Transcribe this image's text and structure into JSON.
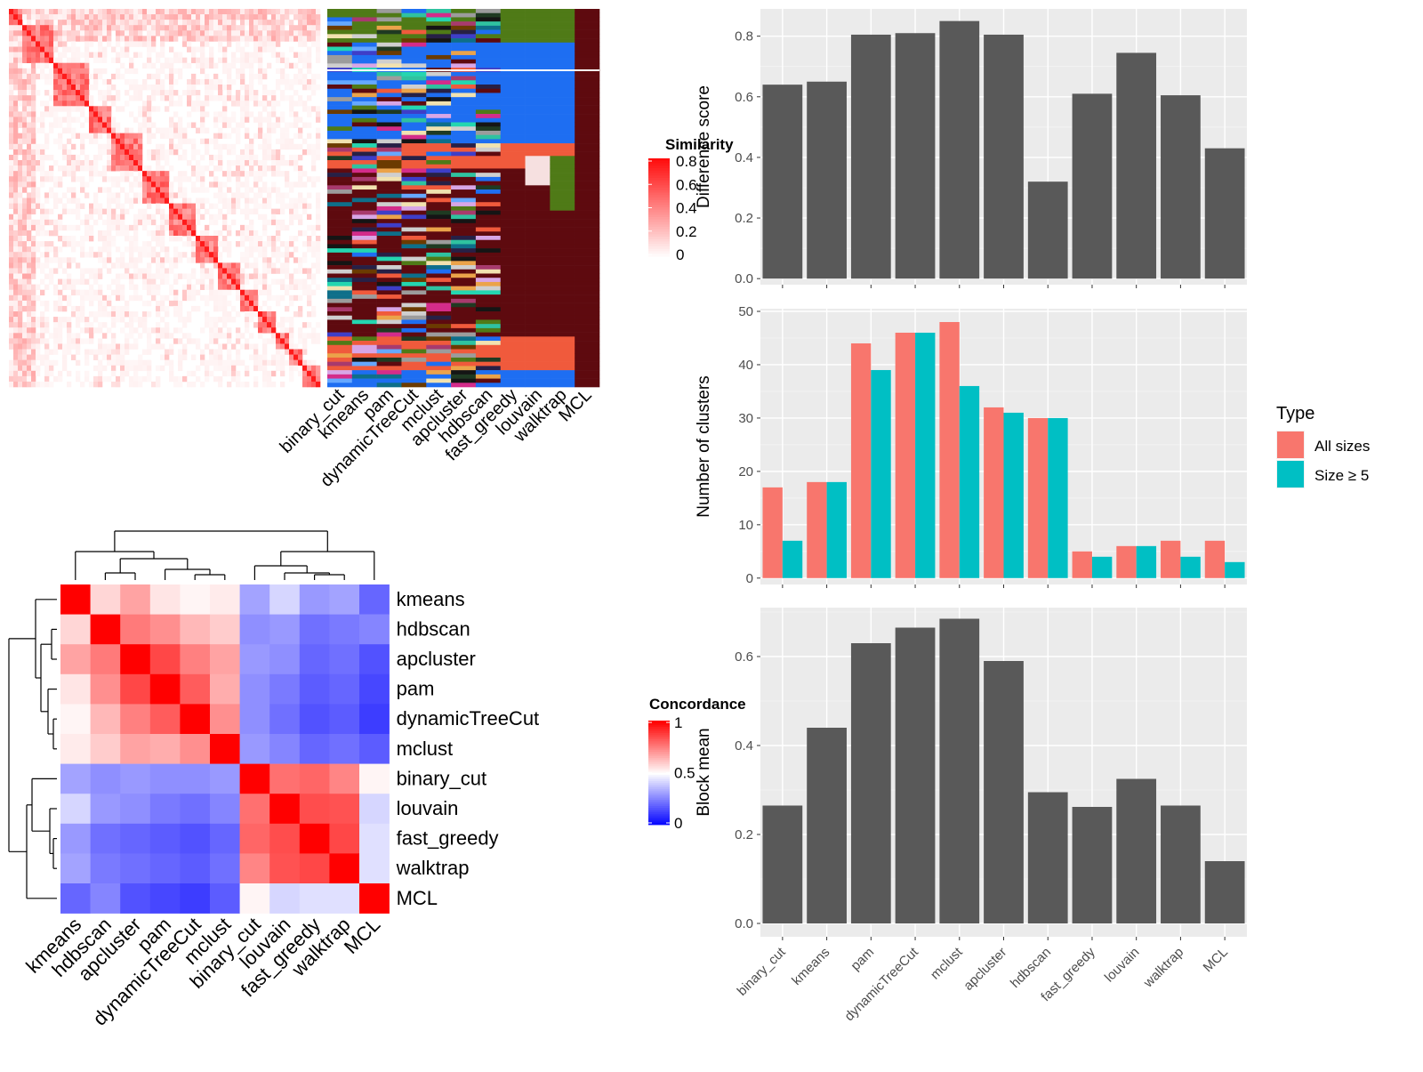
{
  "chart_data": [
    {
      "type": "heatmap",
      "name": "similarity heatmap with cluster assignment annotation",
      "legend": {
        "title": "Similarity",
        "ticks": [
          0,
          0.2,
          0.4,
          0.6,
          0.8
        ],
        "colors": [
          "#ffffff",
          "#ff0000"
        ]
      },
      "annotation_columns": [
        "binary_cut",
        "kmeans",
        "pam",
        "dynamicTreeCut",
        "mclust",
        "apcluster",
        "hdbscan",
        "fast_greedy",
        "louvain",
        "walktrap",
        "MCL"
      ]
    },
    {
      "type": "heatmap",
      "name": "concordance between clustering methods",
      "legend": {
        "title": "Concordance",
        "ticks": [
          0,
          0.5,
          1
        ],
        "colors": [
          "#0000ff",
          "#ffffff",
          "#ff0000"
        ]
      },
      "row_labels": [
        "kmeans",
        "hdbscan",
        "apcluster",
        "pam",
        "dynamicTreeCut",
        "mclust",
        "binary_cut",
        "louvain",
        "fast_greedy",
        "walktrap",
        "MCL"
      ],
      "col_labels": [
        "kmeans",
        "hdbscan",
        "apcluster",
        "pam",
        "dynamicTreeCut",
        "mclust",
        "binary_cut",
        "louvain",
        "fast_greedy",
        "walktrap",
        "MCL"
      ],
      "values": [
        [
          1.0,
          0.58,
          0.68,
          0.55,
          0.52,
          0.54,
          0.32,
          0.42,
          0.3,
          0.32,
          0.2
        ],
        [
          0.58,
          1.0,
          0.76,
          0.72,
          0.64,
          0.6,
          0.28,
          0.3,
          0.22,
          0.24,
          0.26
        ],
        [
          0.68,
          0.76,
          1.0,
          0.86,
          0.75,
          0.68,
          0.3,
          0.28,
          0.2,
          0.22,
          0.16
        ],
        [
          0.55,
          0.72,
          0.86,
          1.0,
          0.82,
          0.66,
          0.28,
          0.24,
          0.18,
          0.2,
          0.14
        ],
        [
          0.52,
          0.64,
          0.75,
          0.82,
          1.0,
          0.72,
          0.28,
          0.22,
          0.16,
          0.18,
          0.12
        ],
        [
          0.54,
          0.6,
          0.68,
          0.66,
          0.72,
          1.0,
          0.3,
          0.26,
          0.2,
          0.22,
          0.18
        ],
        [
          0.32,
          0.28,
          0.3,
          0.28,
          0.28,
          0.3,
          1.0,
          0.78,
          0.8,
          0.74,
          0.52
        ],
        [
          0.42,
          0.3,
          0.28,
          0.24,
          0.22,
          0.26,
          0.78,
          1.0,
          0.85,
          0.84,
          0.42
        ],
        [
          0.3,
          0.22,
          0.2,
          0.18,
          0.16,
          0.2,
          0.8,
          0.85,
          1.0,
          0.86,
          0.44
        ],
        [
          0.32,
          0.24,
          0.22,
          0.2,
          0.18,
          0.22,
          0.74,
          0.84,
          0.86,
          1.0,
          0.44
        ],
        [
          0.2,
          0.26,
          0.16,
          0.14,
          0.12,
          0.18,
          0.52,
          0.42,
          0.44,
          0.44,
          1.0
        ]
      ]
    },
    {
      "type": "bar",
      "categories": [
        "binary_cut",
        "kmeans",
        "pam",
        "dynamicTreeCut",
        "mclust",
        "apcluster",
        "hdbscan",
        "fast_greedy",
        "louvain",
        "walktrap",
        "MCL"
      ],
      "values": [
        0.64,
        0.65,
        0.805,
        0.81,
        0.85,
        0.805,
        0.32,
        0.61,
        0.745,
        0.605,
        0.43
      ],
      "ylabel": "Difference score",
      "yticks": [
        "0.0",
        "0.2",
        "0.4",
        "0.6",
        "0.8"
      ],
      "ylim": [
        -0.02,
        0.89
      ]
    },
    {
      "type": "bar",
      "categories": [
        "binary_cut",
        "kmeans",
        "pam",
        "dynamicTreeCut",
        "mclust",
        "apcluster",
        "hdbscan",
        "fast_greedy",
        "louvain",
        "walktrap",
        "MCL"
      ],
      "series": [
        {
          "name": "All sizes",
          "values": [
            17,
            18,
            44,
            46,
            48,
            32,
            30,
            5,
            6,
            7,
            7
          ],
          "color": "#F8766D"
        },
        {
          "name": "Size ≥ 5",
          "values": [
            7,
            18,
            39,
            46,
            36,
            31,
            30,
            4,
            6,
            4,
            3
          ],
          "color": "#00BFC4"
        }
      ],
      "ylabel": "Number of clusters",
      "yticks": [
        "0",
        "10",
        "20",
        "30",
        "40",
        "50"
      ],
      "ylim": [
        -1.2,
        50.5
      ],
      "legend": {
        "title": "Type",
        "position": "right"
      }
    },
    {
      "type": "bar",
      "categories": [
        "binary_cut",
        "kmeans",
        "pam",
        "dynamicTreeCut",
        "mclust",
        "apcluster",
        "hdbscan",
        "fast_greedy",
        "louvain",
        "walktrap",
        "MCL"
      ],
      "values": [
        0.265,
        0.44,
        0.63,
        0.665,
        0.685,
        0.59,
        0.295,
        0.262,
        0.325,
        0.265,
        0.14
      ],
      "ylabel": "Block mean",
      "yticks": [
        "0.0",
        "0.2",
        "0.4",
        "0.6"
      ],
      "ylim": [
        -0.03,
        0.71
      ]
    }
  ]
}
